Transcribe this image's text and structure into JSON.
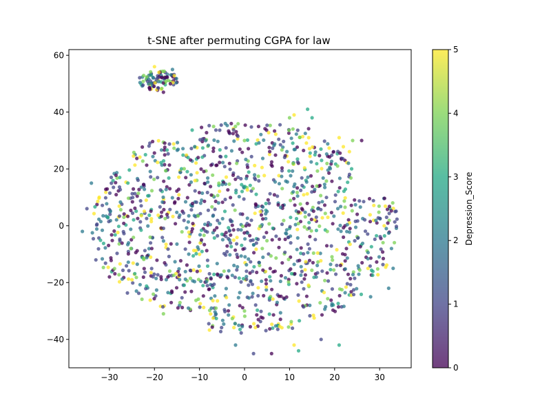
{
  "chart_data": {
    "type": "scatter",
    "title": "t-SNE after permuting CGPA for law",
    "xlabel": "",
    "ylabel": "",
    "xlim": [
      -39,
      37
    ],
    "ylim": [
      -50,
      62
    ],
    "x_ticks": [
      -30,
      -20,
      -10,
      0,
      10,
      20,
      30
    ],
    "y_ticks": [
      -40,
      -20,
      0,
      20,
      40,
      60
    ],
    "grid": false,
    "legend": "none",
    "colorbar": {
      "label": "Depression_Score",
      "range": [
        0,
        5
      ],
      "ticks": [
        0,
        1,
        2,
        3,
        4,
        5
      ],
      "colormap": "viridis",
      "colors": [
        "#440154",
        "#414487",
        "#2a788e",
        "#22a884",
        "#7ad151",
        "#fde725"
      ]
    },
    "point_count": 1400,
    "point_opacity": 0.75,
    "clusters": [
      {
        "name": "upper-cluster",
        "center": [
          -19,
          51
        ],
        "spread": [
          4.5,
          3.5
        ],
        "count": 90
      },
      {
        "name": "main-cloud",
        "center": [
          0,
          0
        ],
        "spread": [
          34,
          38
        ],
        "count": 1310
      }
    ],
    "sample_points": [
      {
        "x": -20,
        "y": 56,
        "z": 5
      },
      {
        "x": -19,
        "y": 54,
        "z": 5
      },
      {
        "x": -16,
        "y": 55,
        "z": 2
      },
      {
        "x": -21,
        "y": 48,
        "z": 0
      },
      {
        "x": -18,
        "y": 47,
        "z": 0
      },
      {
        "x": 14,
        "y": 41,
        "z": 3
      },
      {
        "x": 11,
        "y": 39,
        "z": 5
      },
      {
        "x": 10,
        "y": 38,
        "z": 4
      },
      {
        "x": 15,
        "y": 38,
        "z": 3
      },
      {
        "x": 21,
        "y": 31,
        "z": 5
      },
      {
        "x": 24,
        "y": 30,
        "z": 4
      },
      {
        "x": 26,
        "y": 30,
        "z": 0
      },
      {
        "x": -22,
        "y": 25,
        "z": 3
      },
      {
        "x": -35,
        "y": 6,
        "z": 1
      },
      {
        "x": -34,
        "y": 15,
        "z": 2
      },
      {
        "x": -36,
        "y": -2,
        "z": 2
      },
      {
        "x": -33,
        "y": -12,
        "z": 1
      },
      {
        "x": -30,
        "y": -18,
        "z": 0
      },
      {
        "x": -25,
        "y": -19,
        "z": 5
      },
      {
        "x": -24,
        "y": -23,
        "z": 2
      },
      {
        "x": -18,
        "y": -31,
        "z": 4
      },
      {
        "x": 31,
        "y": 0,
        "z": 5
      },
      {
        "x": 33,
        "y": -15,
        "z": 2
      },
      {
        "x": 32,
        "y": -22,
        "z": 2
      },
      {
        "x": 28,
        "y": -25,
        "z": 2
      },
      {
        "x": 21,
        "y": -42,
        "z": 3
      },
      {
        "x": 17,
        "y": -40,
        "z": 1
      },
      {
        "x": 12,
        "y": -44,
        "z": 3
      },
      {
        "x": 11,
        "y": -42,
        "z": 5
      },
      {
        "x": 6,
        "y": -45,
        "z": 0
      },
      {
        "x": 2,
        "y": -45,
        "z": 1
      },
      {
        "x": -2,
        "y": -42,
        "z": 2
      },
      {
        "x": 5,
        "y": 5,
        "z": 2
      },
      {
        "x": -5,
        "y": -3,
        "z": 3
      },
      {
        "x": 0,
        "y": 30,
        "z": 4
      },
      {
        "x": 0,
        "y": -30,
        "z": 4
      }
    ]
  }
}
